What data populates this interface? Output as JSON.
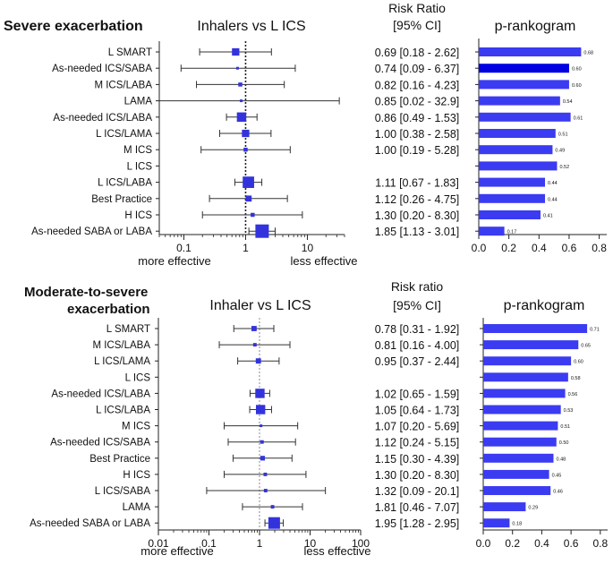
{
  "chart_data": [
    {
      "type": "forest_plot_with_rankogram",
      "title": "Severe exacerbation",
      "forest_title": "Inhalers vs L ICS",
      "ci_header_line1": "Risk Ratio",
      "ci_header_line2": "[95% CI]",
      "rank_title": "p-rankogram",
      "x_scale": "log",
      "x_ticks": [
        {
          "v": 0.1,
          "label": "0.1"
        },
        {
          "v": 1,
          "label": "1"
        },
        {
          "v": 10,
          "label": "10"
        }
      ],
      "x_range": [
        0.04,
        40
      ],
      "favours_left": "more effective",
      "favours_right": "less effective",
      "rank_ticks": [
        "0.0",
        "0.2",
        "0.4",
        "0.6",
        "0.8"
      ],
      "rank_range": [
        0,
        0.85
      ],
      "rows": [
        {
          "label": "L SMART",
          "rr": 0.69,
          "lo": 0.18,
          "hi": 2.62,
          "ci_text": "0.69 [0.18 - 2.62]",
          "weight": 0.55,
          "p": 0.68,
          "p_label": "0.68",
          "highlight": false
        },
        {
          "label": "As-needed ICS/SABA",
          "rr": 0.74,
          "lo": 0.09,
          "hi": 6.37,
          "ci_text": "0.74 [0.09 - 6.37]",
          "weight": 0.1,
          "p": 0.6,
          "p_label": "0.60",
          "highlight": true
        },
        {
          "label": "M ICS/LABA",
          "rr": 0.82,
          "lo": 0.16,
          "hi": 4.23,
          "ci_text": "0.82 [0.16 - 4.23]",
          "weight": 0.3,
          "p": 0.6,
          "p_label": "0.60",
          "highlight": false
        },
        {
          "label": "LAMA",
          "rr": 0.85,
          "lo": 0.02,
          "hi": 32.9,
          "ci_text": "0.85 [0.02 - 32.9]",
          "weight": 0.1,
          "p": 0.54,
          "p_label": "0.54",
          "highlight": false
        },
        {
          "label": "As-needed ICS/LABA",
          "rr": 0.86,
          "lo": 0.49,
          "hi": 1.53,
          "ci_text": "0.86 [0.49 - 1.53]",
          "weight": 0.7,
          "p": 0.61,
          "p_label": "0.61",
          "highlight": false
        },
        {
          "label": "L ICS/LAMA",
          "rr": 1.0,
          "lo": 0.38,
          "hi": 2.58,
          "ci_text": "1.00 [0.38 - 2.58]",
          "weight": 0.55,
          "p": 0.51,
          "p_label": "0.51",
          "highlight": false
        },
        {
          "label": "M ICS",
          "rr": 1.0,
          "lo": 0.19,
          "hi": 5.28,
          "ci_text": "1.00 [0.19 - 5.28]",
          "weight": 0.3,
          "p": 0.49,
          "p_label": "0.49",
          "highlight": false
        },
        {
          "label": "L ICS",
          "rr": null,
          "lo": null,
          "hi": null,
          "ci_text": "",
          "weight": 0,
          "p": 0.52,
          "p_label": "0.52",
          "highlight": false
        },
        {
          "label": "L ICS/LABA",
          "rr": 1.11,
          "lo": 0.67,
          "hi": 1.83,
          "ci_text": "1.11 [0.67 - 1.83]",
          "weight": 0.85,
          "p": 0.44,
          "p_label": "0.44",
          "highlight": false
        },
        {
          "label": "Best Practice",
          "rr": 1.12,
          "lo": 0.26,
          "hi": 4.75,
          "ci_text": "1.12 [0.26 - 4.75]",
          "weight": 0.45,
          "p": 0.44,
          "p_label": "0.44",
          "highlight": false
        },
        {
          "label": "H ICS",
          "rr": 1.3,
          "lo": 0.2,
          "hi": 8.3,
          "ci_text": "1.30 [0.20 - 8.30]",
          "weight": 0.3,
          "p": 0.41,
          "p_label": "0.41",
          "highlight": false
        },
        {
          "label": "As-needed SABA or LABA",
          "rr": 1.85,
          "lo": 1.13,
          "hi": 3.01,
          "ci_text": "1.85 [1.13 - 3.01]",
          "weight": 1.0,
          "p": 0.17,
          "p_label": "0.17",
          "highlight": false
        }
      ]
    },
    {
      "type": "forest_plot_with_rankogram",
      "title": "Moderate-to-severe exacerbation",
      "title_line1": "Moderate-to-severe",
      "title_line2": "exacerbation",
      "forest_title": "Inhaler vs L ICS",
      "ci_header_line1": "Risk ratio",
      "ci_header_line2": "[95% CI]",
      "rank_title": "p-rankogram",
      "x_scale": "log",
      "x_ticks": [
        {
          "v": 0.01,
          "label": "0.01"
        },
        {
          "v": 0.1,
          "label": "0.1"
        },
        {
          "v": 1,
          "label": "1"
        },
        {
          "v": 10,
          "label": "10"
        },
        {
          "v": 100,
          "label": "100"
        }
      ],
      "x_range": [
        0.01,
        100
      ],
      "favours_left": "more effective",
      "favours_right": "less effective",
      "rank_ticks": [
        "0.0",
        "0.2",
        "0.4",
        "0.6",
        "0.8"
      ],
      "rank_range": [
        0,
        0.85
      ],
      "rows": [
        {
          "label": "L SMART",
          "rr": 0.78,
          "lo": 0.31,
          "hi": 1.92,
          "ci_text": "0.78 [0.31 - 1.92]",
          "weight": 0.45,
          "p": 0.71,
          "p_label": "0.71",
          "highlight": false
        },
        {
          "label": "M ICS/LABA",
          "rr": 0.81,
          "lo": 0.16,
          "hi": 4.0,
          "ci_text": "0.81 [0.16 - 4.00]",
          "weight": 0.3,
          "p": 0.65,
          "p_label": "0.65",
          "highlight": false
        },
        {
          "label": "L ICS/LAMA",
          "rr": 0.95,
          "lo": 0.37,
          "hi": 2.44,
          "ci_text": "0.95 [0.37 - 2.44]",
          "weight": 0.45,
          "p": 0.6,
          "p_label": "0.60",
          "highlight": false
        },
        {
          "label": "L ICS",
          "rr": null,
          "lo": null,
          "hi": null,
          "ci_text": "",
          "weight": 0,
          "p": 0.58,
          "p_label": "0.58",
          "highlight": false
        },
        {
          "label": "As-needed ICS/LABA",
          "rr": 1.02,
          "lo": 0.65,
          "hi": 1.59,
          "ci_text": "1.02 [0.65 - 1.59]",
          "weight": 0.8,
          "p": 0.56,
          "p_label": "0.56",
          "highlight": false
        },
        {
          "label": "L ICS/LABA",
          "rr": 1.05,
          "lo": 0.64,
          "hi": 1.73,
          "ci_text": "1.05 [0.64 - 1.73]",
          "weight": 0.8,
          "p": 0.53,
          "p_label": "0.53",
          "highlight": false
        },
        {
          "label": "M ICS",
          "rr": 1.07,
          "lo": 0.2,
          "hi": 5.69,
          "ci_text": "1.07 [0.20 - 5.69]",
          "weight": 0.2,
          "p": 0.51,
          "p_label": "0.51",
          "highlight": false
        },
        {
          "label": "As-needed ICS/SABA",
          "rr": 1.12,
          "lo": 0.24,
          "hi": 5.15,
          "ci_text": "1.12 [0.24 - 5.15]",
          "weight": 0.3,
          "p": 0.5,
          "p_label": "0.50",
          "highlight": false
        },
        {
          "label": "Best Practice",
          "rr": 1.15,
          "lo": 0.3,
          "hi": 4.39,
          "ci_text": "1.15 [0.30 - 4.39]",
          "weight": 0.4,
          "p": 0.48,
          "p_label": "0.48",
          "highlight": false
        },
        {
          "label": "H ICS",
          "rr": 1.3,
          "lo": 0.2,
          "hi": 8.3,
          "ci_text": "1.30 [0.20 - 8.30]",
          "weight": 0.3,
          "p": 0.45,
          "p_label": "0.45",
          "highlight": false
        },
        {
          "label": "L ICS/SABA",
          "rr": 1.32,
          "lo": 0.09,
          "hi": 20.1,
          "ci_text": "1.32 [0.09 - 20.1]",
          "weight": 0.3,
          "p": 0.46,
          "p_label": "0.46",
          "highlight": false
        },
        {
          "label": "LAMA",
          "rr": 1.81,
          "lo": 0.46,
          "hi": 7.07,
          "ci_text": "1.81 [0.46 - 7.07]",
          "weight": 0.3,
          "p": 0.29,
          "p_label": "0.29",
          "highlight": false
        },
        {
          "label": "As-needed SABA or LABA",
          "rr": 1.95,
          "lo": 1.28,
          "hi": 2.95,
          "ci_text": "1.95 [1.28 - 2.95]",
          "weight": 1.0,
          "p": 0.18,
          "p_label": "0.18",
          "highlight": false
        }
      ]
    }
  ],
  "colors": {
    "marker": "#3333dd",
    "bar": "#3b3bf2",
    "bar_highlight": "#0000e0",
    "ci_line": "#333333",
    "axis": "#222222",
    "ref_line": "#222222",
    "ref_line_dotted_light": "#888888"
  }
}
